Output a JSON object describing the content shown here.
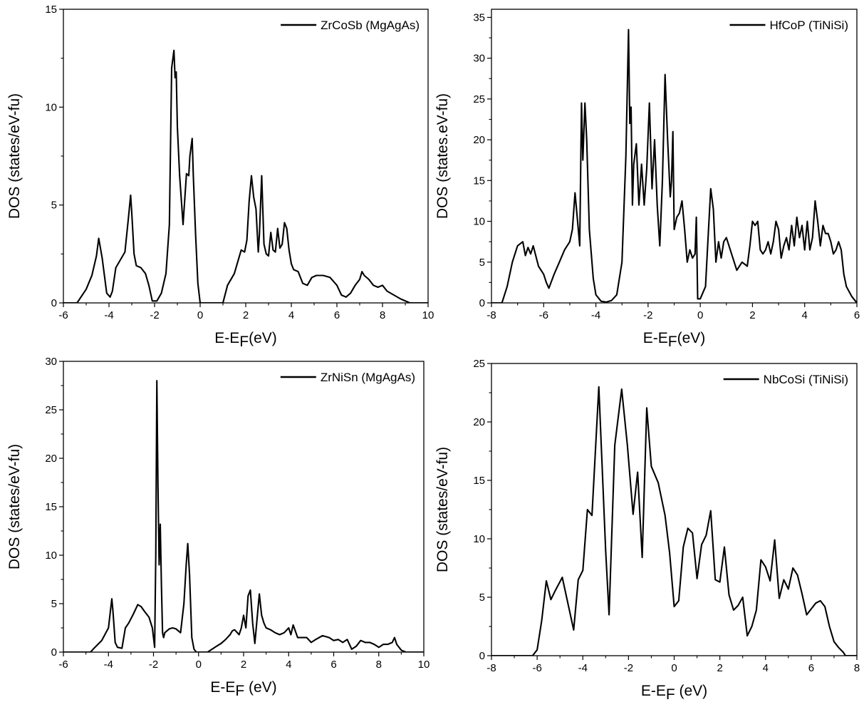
{
  "chart_data": [
    {
      "type": "line",
      "xlabel": "E-EF(eV)",
      "ylabel": "DOS (states/eV-fu)",
      "xlim": [
        -6,
        10
      ],
      "ylim": [
        0,
        15
      ],
      "xticks": [
        "-6",
        "-4",
        "-2",
        "0",
        "2",
        "4",
        "6",
        "8",
        "10"
      ],
      "yticks": [
        "0",
        "5",
        "10",
        "15"
      ],
      "legend_position": "top-right",
      "series": [
        {
          "name": "ZrCoSb (MgAgAs)",
          "x": [
            -6.0,
            -5.4,
            -5.0,
            -4.75,
            -4.55,
            -4.45,
            -4.3,
            -4.1,
            -3.95,
            -3.85,
            -3.7,
            -3.5,
            -3.3,
            -3.15,
            -3.05,
            -3.0,
            -2.9,
            -2.8,
            -2.6,
            -2.4,
            -2.25,
            -2.1,
            -1.9,
            -1.7,
            -1.5,
            -1.35,
            -1.25,
            -1.15,
            -1.1,
            -1.05,
            -1.0,
            -0.9,
            -0.75,
            -0.6,
            -0.5,
            -0.45,
            -0.35,
            -0.3,
            -0.2,
            -0.1,
            0.0,
            0.5,
            1.0,
            1.2,
            1.5,
            1.8,
            1.95,
            2.05,
            2.15,
            2.25,
            2.35,
            2.45,
            2.55,
            2.6,
            2.7,
            2.8,
            2.9,
            3.0,
            3.1,
            3.2,
            3.3,
            3.4,
            3.5,
            3.6,
            3.7,
            3.8,
            3.9,
            4.0,
            4.1,
            4.3,
            4.5,
            4.7,
            4.9,
            5.1,
            5.4,
            5.7,
            6.0,
            6.2,
            6.4,
            6.6,
            6.8,
            7.0,
            7.1,
            7.2,
            7.4,
            7.6,
            7.8,
            8.0,
            8.2,
            8.5,
            8.8,
            9.2,
            9.6,
            10.0
          ],
          "y": [
            0,
            0,
            0.7,
            1.4,
            2.4,
            3.3,
            2.3,
            0.5,
            0.3,
            0.6,
            1.8,
            2.2,
            2.6,
            4.3,
            5.5,
            4.6,
            2.5,
            1.9,
            1.8,
            1.5,
            0.9,
            0.1,
            0.1,
            0.5,
            1.5,
            4.0,
            12.0,
            12.9,
            11.5,
            11.8,
            9.0,
            6.5,
            4.0,
            6.6,
            6.5,
            7.5,
            8.4,
            6.5,
            3.5,
            1.0,
            0,
            0,
            0,
            0.9,
            1.5,
            2.7,
            2.6,
            3.2,
            5.2,
            6.5,
            5.4,
            4.8,
            2.6,
            3.5,
            6.5,
            3.0,
            2.5,
            2.4,
            3.6,
            2.7,
            2.6,
            3.8,
            2.8,
            3.0,
            4.1,
            3.8,
            2.7,
            2.0,
            1.7,
            1.6,
            1.0,
            0.9,
            1.3,
            1.4,
            1.4,
            1.3,
            0.9,
            0.4,
            0.3,
            0.5,
            0.9,
            1.2,
            1.6,
            1.4,
            1.2,
            0.9,
            0.8,
            0.9,
            0.6,
            0.4,
            0.2,
            0,
            0,
            0
          ]
        }
      ]
    },
    {
      "type": "line",
      "xlabel": "E-EF(eV)",
      "ylabel": "DOS (states.eV-fu)",
      "xlim": [
        -8,
        6
      ],
      "ylim": [
        0,
        36
      ],
      "xticks": [
        "-8",
        "-6",
        "-4",
        "-2",
        "0",
        "2",
        "4",
        "6"
      ],
      "yticks": [
        "0",
        "5",
        "10",
        "15",
        "20",
        "25",
        "30",
        "35"
      ],
      "legend_position": "top-right",
      "series": [
        {
          "name": "HfCoP (TiNiSi)",
          "x": [
            -8.0,
            -7.6,
            -7.4,
            -7.2,
            -7.0,
            -6.8,
            -6.7,
            -6.6,
            -6.5,
            -6.4,
            -6.2,
            -6.0,
            -5.9,
            -5.8,
            -5.6,
            -5.4,
            -5.2,
            -5.0,
            -4.9,
            -4.8,
            -4.7,
            -4.62,
            -4.55,
            -4.5,
            -4.42,
            -4.35,
            -4.25,
            -4.1,
            -4.0,
            -3.8,
            -3.6,
            -3.4,
            -3.2,
            -3.0,
            -2.85,
            -2.75,
            -2.7,
            -2.65,
            -2.6,
            -2.55,
            -2.45,
            -2.35,
            -2.25,
            -2.15,
            -2.05,
            -1.95,
            -1.85,
            -1.75,
            -1.65,
            -1.55,
            -1.45,
            -1.35,
            -1.25,
            -1.15,
            -1.1,
            -1.05,
            -1.0,
            -0.9,
            -0.8,
            -0.7,
            -0.6,
            -0.5,
            -0.4,
            -0.3,
            -0.2,
            -0.15,
            -0.1,
            0.0,
            0.2,
            0.3,
            0.4,
            0.5,
            0.6,
            0.7,
            0.8,
            0.9,
            1.0,
            1.2,
            1.4,
            1.6,
            1.8,
            1.9,
            2.0,
            2.1,
            2.2,
            2.3,
            2.4,
            2.5,
            2.6,
            2.7,
            2.8,
            2.9,
            3.0,
            3.1,
            3.2,
            3.3,
            3.4,
            3.5,
            3.6,
            3.7,
            3.8,
            3.9,
            4.0,
            4.1,
            4.2,
            4.3,
            4.4,
            4.5,
            4.6,
            4.7,
            4.8,
            4.9,
            5.0,
            5.1,
            5.2,
            5.3,
            5.4,
            5.5,
            5.6,
            5.8,
            6.0
          ],
          "y": [
            0,
            0,
            2.0,
            5.0,
            7.0,
            7.5,
            5.8,
            6.8,
            6.0,
            7.0,
            4.5,
            3.5,
            2.5,
            1.8,
            3.5,
            5.0,
            6.5,
            7.5,
            9.0,
            13.5,
            10.0,
            7.0,
            24.5,
            17.5,
            24.5,
            20.0,
            9.0,
            3.0,
            1.0,
            0.2,
            0.1,
            0.3,
            1.0,
            5.0,
            18.0,
            33.5,
            22.0,
            24.0,
            12.0,
            17.0,
            19.5,
            12.0,
            17.0,
            12.0,
            16.5,
            24.5,
            14.0,
            20.0,
            12.0,
            7.0,
            15.0,
            28.0,
            20.0,
            13.0,
            15.0,
            21.0,
            9.0,
            10.5,
            11.0,
            12.5,
            9.0,
            5.0,
            6.5,
            5.5,
            6.0,
            10.5,
            0.5,
            0.5,
            2.0,
            8.0,
            14.0,
            11.5,
            5.0,
            7.5,
            5.5,
            7.5,
            8.0,
            6.0,
            4.0,
            5.0,
            4.5,
            7.0,
            10.0,
            9.5,
            10.0,
            6.5,
            6.0,
            6.5,
            7.5,
            6.0,
            7.5,
            10.0,
            9.0,
            5.5,
            7.0,
            8.0,
            6.5,
            9.5,
            7.0,
            10.5,
            8.0,
            9.5,
            6.5,
            10.0,
            6.5,
            8.0,
            12.5,
            10.0,
            7.0,
            9.5,
            8.5,
            8.5,
            7.5,
            6.0,
            6.5,
            7.5,
            6.5,
            3.5,
            2.0,
            0.8,
            0
          ]
        }
      ]
    },
    {
      "type": "line",
      "xlabel": "E-EF (eV)",
      "ylabel": "DOS (states/eV-fu)",
      "xlim": [
        -6,
        10
      ],
      "ylim": [
        0,
        30
      ],
      "xticks": [
        "-6",
        "-4",
        "-2",
        "0",
        "2",
        "4",
        "6",
        "8",
        "10"
      ],
      "yticks": [
        "0",
        "5",
        "10",
        "15",
        "20",
        "25",
        "30"
      ],
      "legend_position": "top-right",
      "series": [
        {
          "name": "ZrNiSn (MgAgAs)",
          "x": [
            -6.0,
            -4.8,
            -4.6,
            -4.3,
            -4.0,
            -3.9,
            -3.85,
            -3.8,
            -3.7,
            -3.6,
            -3.4,
            -3.25,
            -3.1,
            -2.9,
            -2.7,
            -2.55,
            -2.4,
            -2.2,
            -2.05,
            -1.95,
            -1.9,
            -1.85,
            -1.8,
            -1.75,
            -1.7,
            -1.65,
            -1.6,
            -1.55,
            -1.5,
            -1.4,
            -1.3,
            -1.15,
            -1.0,
            -0.8,
            -0.65,
            -0.55,
            -0.48,
            -0.4,
            -0.3,
            -0.2,
            -0.1,
            0.0,
            0.2,
            0.4,
            0.6,
            0.8,
            1.0,
            1.2,
            1.4,
            1.5,
            1.6,
            1.8,
            1.9,
            2.0,
            2.1,
            2.2,
            2.3,
            2.4,
            2.5,
            2.6,
            2.7,
            2.8,
            2.9,
            3.0,
            3.2,
            3.4,
            3.6,
            3.8,
            4.0,
            4.1,
            4.2,
            4.4,
            4.6,
            4.8,
            5.0,
            5.2,
            5.5,
            5.8,
            6.0,
            6.2,
            6.4,
            6.6,
            6.8,
            7.0,
            7.2,
            7.4,
            7.6,
            7.8,
            8.0,
            8.2,
            8.4,
            8.6,
            8.7,
            8.8,
            9.0,
            9.2,
            9.5,
            10.0
          ],
          "y": [
            0,
            0,
            0.5,
            1.2,
            2.5,
            4.5,
            5.5,
            4.2,
            1.0,
            0.5,
            0.4,
            2.5,
            3.0,
            3.9,
            4.9,
            4.7,
            4.2,
            3.6,
            2.5,
            0.5,
            10.0,
            28.0,
            17.0,
            9.0,
            13.2,
            7.0,
            2.0,
            1.5,
            2.0,
            2.2,
            2.4,
            2.5,
            2.4,
            2.0,
            5.0,
            9.0,
            11.2,
            8.0,
            1.5,
            0.3,
            0,
            0,
            0,
            0,
            0.3,
            0.6,
            0.9,
            1.3,
            1.8,
            2.2,
            2.3,
            1.8,
            2.5,
            3.8,
            2.5,
            5.8,
            6.4,
            3.0,
            0.9,
            3.5,
            6.0,
            3.8,
            3.0,
            2.5,
            2.3,
            2.0,
            1.8,
            2.0,
            2.5,
            1.8,
            2.8,
            1.5,
            1.5,
            1.5,
            1.0,
            1.3,
            1.7,
            1.5,
            1.2,
            1.3,
            1.0,
            1.3,
            0.3,
            0.6,
            1.2,
            1.0,
            1.0,
            0.8,
            0.5,
            0.8,
            0.8,
            1.0,
            1.5,
            0.8,
            0.2,
            0,
            0,
            0
          ]
        }
      ]
    },
    {
      "type": "line",
      "xlabel": "E-EF (eV)",
      "ylabel": "DOS (states/eV-fu)",
      "xlim": [
        -8,
        8
      ],
      "ylim": [
        0,
        25
      ],
      "xticks": [
        "-8",
        "-6",
        "-4",
        "-2",
        "0",
        "2",
        "4",
        "6",
        "8"
      ],
      "yticks": [
        "0",
        "5",
        "10",
        "15",
        "20",
        "25"
      ],
      "legend_position": "top-right",
      "series": [
        {
          "name": "NbCoSi (TiNiSi)",
          "x": [
            -8.0,
            -6.2,
            -6.0,
            -5.8,
            -5.6,
            -5.4,
            -5.2,
            -4.9,
            -4.6,
            -4.4,
            -4.2,
            -4.0,
            -3.8,
            -3.6,
            -3.3,
            -3.0,
            -2.85,
            -2.6,
            -2.3,
            -2.05,
            -1.8,
            -1.6,
            -1.4,
            -1.2,
            -1.0,
            -0.7,
            -0.4,
            -0.2,
            0.0,
            0.2,
            0.4,
            0.6,
            0.8,
            1.0,
            1.2,
            1.4,
            1.6,
            1.8,
            2.0,
            2.2,
            2.4,
            2.6,
            2.8,
            3.0,
            3.2,
            3.4,
            3.6,
            3.8,
            4.0,
            4.2,
            4.4,
            4.6,
            4.8,
            5.0,
            5.2,
            5.4,
            5.6,
            5.8,
            6.0,
            6.2,
            6.4,
            6.6,
            6.8,
            7.0,
            7.2,
            7.4,
            7.5,
            8.0
          ],
          "y": [
            0,
            0,
            0.5,
            3.0,
            6.4,
            4.8,
            5.6,
            6.7,
            4.0,
            2.2,
            6.5,
            7.3,
            12.5,
            12.0,
            23.0,
            9.0,
            3.5,
            18.0,
            22.8,
            18.0,
            12.1,
            15.7,
            8.4,
            21.2,
            16.2,
            14.8,
            12.0,
            8.8,
            4.2,
            4.7,
            9.3,
            10.9,
            10.5,
            6.6,
            9.5,
            10.3,
            12.4,
            6.5,
            6.3,
            9.3,
            5.2,
            3.9,
            4.3,
            5.0,
            1.7,
            2.5,
            3.9,
            8.2,
            7.6,
            6.4,
            9.9,
            4.9,
            6.5,
            5.7,
            7.5,
            6.9,
            5.3,
            3.5,
            4.0,
            4.5,
            4.7,
            4.2,
            2.5,
            1.2,
            0.7,
            0.3,
            0,
            0
          ]
        }
      ]
    }
  ]
}
